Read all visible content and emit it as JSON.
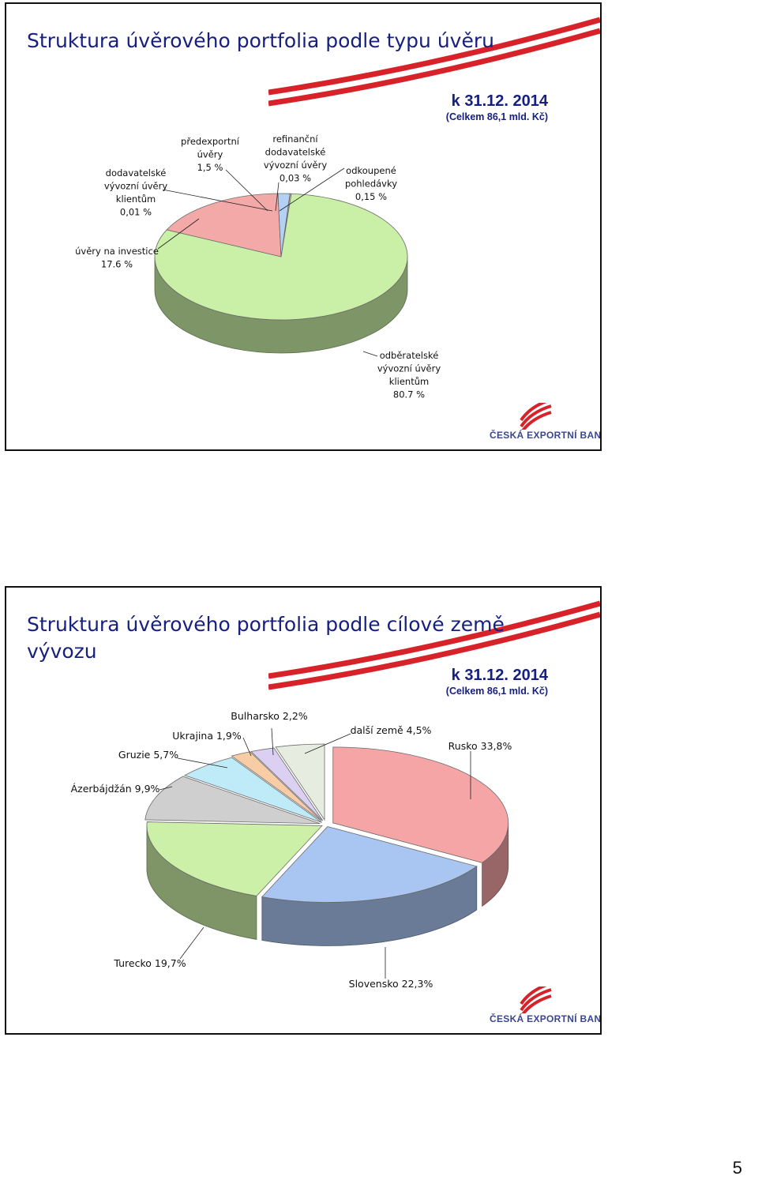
{
  "slides": [
    {
      "title": "Struktura úvěrového portfolia podle typu úvěru",
      "date": "k 31.12. 2014",
      "total": "(Celkem 86,1 mld. Kč)",
      "logo_text": "ČESKÁ EXPORTNÍ BANKA"
    },
    {
      "title": "Struktura úvěrového portfolia podle cílové země vývozu",
      "date": "k 31.12. 2014",
      "total": "(Celkem 86,1 mld. Kč)",
      "logo_text": "ČESKÁ EXPORTNÍ BANKA"
    }
  ],
  "page_number": "5",
  "colors": {
    "title": "#17207e",
    "brand_red": "#d8222a"
  },
  "chart_data": [
    {
      "type": "pie",
      "style": "3d",
      "series": [
        {
          "label_lines": [
            "odběratelské",
            "vývozní úvěry",
            "klientům",
            "80.7 %"
          ],
          "value": 80.7,
          "color": "#c9f0a6"
        },
        {
          "label_lines": [
            "dodavatelské",
            "vývozní úvěry",
            "klientům",
            "0,01 %"
          ],
          "value": 0.01,
          "color": "#8fb1e8"
        },
        {
          "label_lines": [
            "úvěry na investice",
            "17.6 %"
          ],
          "value": 17.6,
          "color": "#f4a9a9"
        },
        {
          "label_lines": [
            "předexportní",
            "úvěry",
            "1,5 %"
          ],
          "value": 1.5,
          "color": "#b3d1f5"
        },
        {
          "label_lines": [
            "refinanční",
            "dodavatelské",
            "vývozní úvěry",
            "0,03 %"
          ],
          "value": 0.03,
          "color": "#d9c7f0"
        },
        {
          "label_lines": [
            "odkoupené",
            "pohledávky",
            "0,15 %"
          ],
          "value": 0.15,
          "color": "#f7c79b"
        }
      ]
    },
    {
      "type": "pie",
      "style": "3d",
      "series": [
        {
          "label": "Rusko 33,8%",
          "value": 33.8,
          "color": "#f5a5a5"
        },
        {
          "label": "Slovensko 22,3%",
          "value": 22.3,
          "color": "#a9c6f2"
        },
        {
          "label": "Turecko 19,7%",
          "value": 19.7,
          "color": "#cdf0a8"
        },
        {
          "label": "Ázerbájdžán 9,9%",
          "value": 9.9,
          "color": "#cfcfcf"
        },
        {
          "label": "Gruzie 5,7%",
          "value": 5.7,
          "color": "#bfeaf7"
        },
        {
          "label": "Ukrajina 1,9%",
          "value": 1.9,
          "color": "#f8cda6"
        },
        {
          "label": "Bulharsko 2,2%",
          "value": 2.2,
          "color": "#dbd0f2"
        },
        {
          "label": "další země 4,5%",
          "value": 4.5,
          "color": "#e6ede0"
        }
      ]
    }
  ]
}
